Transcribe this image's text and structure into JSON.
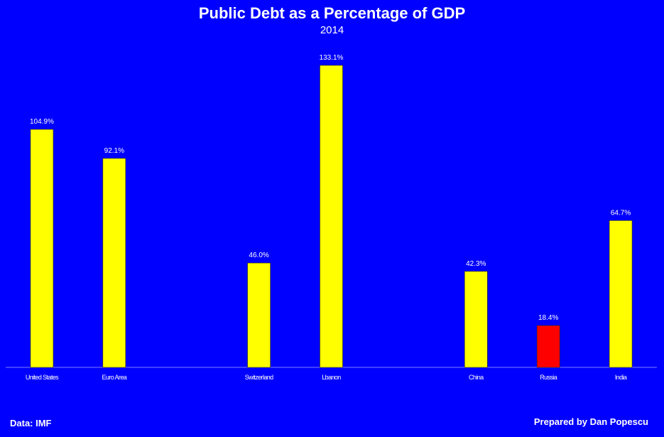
{
  "chart_data": {
    "type": "bar",
    "title": "Public Debt as a Percentage of GDP",
    "subtitle": "2014",
    "categories": [
      "United States",
      "Euro Area",
      "",
      "Switzerland",
      "Lbanon",
      "",
      "China",
      "Russia",
      "India"
    ],
    "values": [
      104.9,
      92.1,
      null,
      46.0,
      133.1,
      null,
      42.3,
      18.4,
      64.7
    ],
    "labels": [
      "104.9%",
      "92.1%",
      "",
      "46.0%",
      "133.1%",
      "",
      "42.3%",
      "18.4%",
      "64.7%"
    ],
    "bar_colors": [
      "#FFFF00",
      "#FFFF00",
      "",
      "#FFFF00",
      "#FFFF00",
      "",
      "#FFFF00",
      "#FF0000",
      "#FFFF00"
    ],
    "ylim": [
      0,
      140
    ],
    "grid": false,
    "xlabel": "",
    "ylabel": ""
  },
  "colors": {
    "background": "#0000FF",
    "bar_default": "#FFFF00",
    "bar_highlight": "#FF0000",
    "text": "#FFFFFF"
  },
  "footer": {
    "source": "Data: IMF",
    "credit": "Prepared by Dan Popescu"
  }
}
